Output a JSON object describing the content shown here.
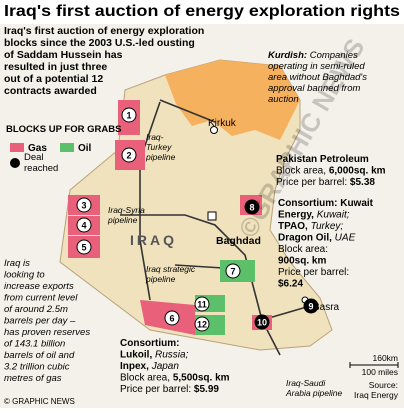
{
  "title": "Iraq's first auction of energy exploration rights",
  "intro": [
    "Iraq's first auction of energy exploration",
    "blocks since the 2003 U.S.-led ousting",
    "of Saddam Hussein has",
    "resulted in just three",
    "out of a potential 12",
    "contracts awarded"
  ],
  "legend": {
    "heading": "BLOCKS UP FOR GRABS",
    "gas": "Gas",
    "oil": "Oil",
    "deal": [
      "Deal",
      "reached"
    ]
  },
  "kurdish": {
    "label": "Kurdish:",
    "lines": [
      " Companies",
      "operating in semi-ruled",
      "area without Baghdad's",
      "approval banned from",
      "auction"
    ]
  },
  "places": {
    "kirkuk": "Kirkuk",
    "baghdad": "Baghdad",
    "basra": "Basra",
    "country": "IRAQ"
  },
  "pipelines": {
    "turkey": [
      "Iraq-",
      "Turkey",
      "pipeline"
    ],
    "syria": [
      "Iraq-Syria",
      "pipeline"
    ],
    "strategic": [
      "Iraq strategic",
      "pipeline"
    ],
    "saudi": [
      "Iraq-Saudi",
      "Arabia pipeline"
    ]
  },
  "blocks": [
    "1",
    "2",
    "3",
    "4",
    "5",
    "6",
    "7",
    "8",
    "9",
    "10",
    "11",
    "12"
  ],
  "deals": {
    "pakistan": [
      [
        [
          "Pakistan Petroleum",
          "b"
        ]
      ],
      [
        [
          "Block area, ",
          "n"
        ],
        [
          "6,000sq. km",
          "b"
        ]
      ],
      [
        [
          "Price per barrel: ",
          "n"
        ],
        [
          "$5.38",
          "b"
        ]
      ]
    ],
    "kuwait": [
      [
        [
          "Consortium: Kuwait",
          "b"
        ]
      ],
      [
        [
          "Energy, ",
          "b"
        ],
        [
          "Kuwait;",
          "i"
        ]
      ],
      [
        [
          "TPAO, ",
          "b"
        ],
        [
          "Turkey;",
          "i"
        ]
      ],
      [
        [
          "Dragon Oil, ",
          "b"
        ],
        [
          "UAE",
          "i"
        ]
      ],
      [
        [
          "Block area:",
          "n"
        ]
      ],
      [
        [
          "900sq. km",
          "b"
        ]
      ],
      [
        [
          "Price per barrel:",
          "n"
        ]
      ],
      [
        [
          "$6.24",
          "b"
        ]
      ]
    ],
    "lukoil": [
      [
        [
          "Consortium:",
          "b"
        ]
      ],
      [
        [
          "Lukoil, ",
          "b"
        ],
        [
          "Russia;",
          "i"
        ]
      ],
      [
        [
          "Inpex, ",
          "b"
        ],
        [
          "Japan",
          "i"
        ]
      ],
      [
        [
          "Block area, ",
          "n"
        ],
        [
          "5,500sq. km",
          "b"
        ]
      ],
      [
        [
          "Price per barrel: ",
          "n"
        ],
        [
          "$5.99",
          "b"
        ]
      ]
    ]
  },
  "note": [
    "Iraq is",
    "looking to",
    "increase exports",
    "from current level",
    "of around 2.5m",
    "barrels per day –",
    "has proven reserves",
    "of 143.1 billion",
    "barrels of oil and",
    "3.2 trillion cubic",
    "metres of gas"
  ],
  "scale": {
    "km": "160km",
    "miles": "100 miles"
  },
  "source": [
    "Source:",
    "Iraq Energy"
  ],
  "credit": "© GRAPHIC NEWS",
  "watermark": "©GRAPHIC NEWS"
}
